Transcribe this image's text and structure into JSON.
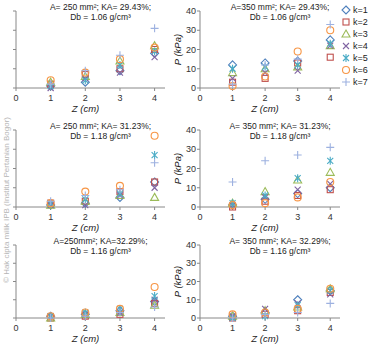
{
  "watermark": "© Hak cipta milik IPB (Institut Pertanian Bogor)",
  "chart_data": [
    {
      "type": "scatter",
      "title": [
        "A= 250 mm²; KA= 29.43%;",
        "Db = 1.06 g/cm³"
      ],
      "x_label": "Z (cm)",
      "x": [
        1,
        2,
        3,
        4
      ],
      "xlim": [
        0,
        4.3
      ],
      "xticks": [
        0,
        1,
        2,
        3,
        4
      ],
      "ylim": [
        0,
        40
      ],
      "yticks": [
        0,
        10,
        20,
        30,
        40
      ],
      "tick_labels": "x",
      "grid": false,
      "series": [
        {
          "name": "k=1",
          "color": "#4f81bd",
          "marker": "diamond",
          "values": [
            1,
            3,
            9,
            18
          ]
        },
        {
          "name": "k=2",
          "color": "#c0504d",
          "marker": "square",
          "values": [
            2,
            7,
            10,
            20
          ]
        },
        {
          "name": "k=3",
          "color": "#9bbb59",
          "marker": "triangle",
          "values": [
            3,
            6,
            14,
            22
          ]
        },
        {
          "name": "k=4",
          "color": "#8064a2",
          "marker": "x",
          "values": [
            0,
            5,
            8,
            16
          ]
        },
        {
          "name": "k=5",
          "color": "#4bacc6",
          "marker": "asterisk",
          "values": [
            1,
            4,
            12,
            19
          ]
        },
        {
          "name": "k=6",
          "color": "#f79646",
          "marker": "circle",
          "values": [
            4,
            8,
            15,
            21
          ]
        },
        {
          "name": "k=7",
          "color": "#9db1e0",
          "marker": "plus",
          "values": [
            2,
            9,
            17,
            31
          ]
        }
      ]
    },
    {
      "type": "scatter",
      "title": [
        "A=350 mm²; KA= 29.43%;",
        "Db = 1.06 g/cm³"
      ],
      "x_label": "Z (cm)",
      "y_label": "P (kPa)",
      "x": [
        1,
        2,
        3,
        4
      ],
      "xlim": [
        0,
        4.3
      ],
      "xticks": [
        0,
        1,
        2,
        3,
        4
      ],
      "ylim": [
        0,
        40
      ],
      "yticks": [
        0,
        10,
        20,
        30,
        40
      ],
      "grid": false,
      "legend": "right",
      "series": [
        {
          "name": "k=1",
          "color": "#4f81bd",
          "marker": "diamond",
          "values": [
            12,
            13,
            14,
            25
          ]
        },
        {
          "name": "k=2",
          "color": "#c0504d",
          "marker": "square",
          "values": [
            3,
            5,
            13,
            16
          ]
        },
        {
          "name": "k=3",
          "color": "#9bbb59",
          "marker": "triangle",
          "values": [
            8,
            10,
            11,
            22
          ]
        },
        {
          "name": "k=4",
          "color": "#8064a2",
          "marker": "x",
          "values": [
            5,
            8,
            9,
            22
          ]
        },
        {
          "name": "k=5",
          "color": "#4bacc6",
          "marker": "asterisk",
          "values": [
            10,
            11,
            12,
            23
          ]
        },
        {
          "name": "k=6",
          "color": "#f79646",
          "marker": "circle",
          "values": [
            1,
            6,
            19,
            30
          ]
        },
        {
          "name": "k=7",
          "color": "#9db1e0",
          "marker": "plus",
          "values": [
            2,
            12,
            15,
            33
          ]
        }
      ]
    },
    {
      "type": "scatter",
      "title": [
        "A= 250 mm²; KA= 31.23%;",
        "Db = 1.18 g/cm³"
      ],
      "x_label": "Z (cm)",
      "x": [
        1,
        2,
        3,
        4
      ],
      "xlim": [
        0,
        4.3
      ],
      "xticks": [
        0,
        1,
        2,
        3,
        4
      ],
      "ylim": [
        0,
        40
      ],
      "yticks": [
        0,
        10,
        20,
        30,
        40
      ],
      "tick_labels": "x",
      "grid": false,
      "series": [
        {
          "name": "k=1",
          "color": "#4f81bd",
          "marker": "diamond",
          "values": [
            1,
            2,
            5,
            13
          ]
        },
        {
          "name": "k=2",
          "color": "#c0504d",
          "marker": "square",
          "values": [
            2,
            3,
            8,
            13
          ]
        },
        {
          "name": "k=3",
          "color": "#9bbb59",
          "marker": "triangle",
          "values": [
            1,
            3,
            6,
            5
          ]
        },
        {
          "name": "k=4",
          "color": "#8064a2",
          "marker": "x",
          "values": [
            1,
            1,
            6,
            10
          ]
        },
        {
          "name": "k=5",
          "color": "#4bacc6",
          "marker": "asterisk",
          "values": [
            2,
            4,
            7,
            27
          ]
        },
        {
          "name": "k=6",
          "color": "#f79646",
          "marker": "circle",
          "values": [
            2,
            8,
            11,
            37
          ]
        },
        {
          "name": "k=7",
          "color": "#9db1e0",
          "marker": "plus",
          "values": [
            3,
            6,
            9,
            23
          ]
        }
      ]
    },
    {
      "type": "scatter",
      "title": [
        "A= 350 mm²; KA= 31.23%;",
        "Db = 1.18 g/cm³"
      ],
      "x_label": "Z (cm)",
      "y_label": "P (kPa)",
      "x": [
        1,
        2,
        3,
        4
      ],
      "xlim": [
        0,
        4.3
      ],
      "xticks": [
        0,
        1,
        2,
        3,
        4
      ],
      "ylim": [
        0,
        40
      ],
      "yticks": [
        0,
        10,
        20,
        30,
        40
      ],
      "grid": false,
      "series": [
        {
          "name": "k=1",
          "color": "#4f81bd",
          "marker": "diamond",
          "values": [
            1,
            4,
            7,
            10
          ]
        },
        {
          "name": "k=2",
          "color": "#c0504d",
          "marker": "square",
          "values": [
            0,
            3,
            6,
            9
          ]
        },
        {
          "name": "k=3",
          "color": "#9bbb59",
          "marker": "triangle",
          "values": [
            2,
            8,
            14,
            18
          ]
        },
        {
          "name": "k=4",
          "color": "#8064a2",
          "marker": "x",
          "values": [
            1,
            5,
            9,
            12
          ]
        },
        {
          "name": "k=5",
          "color": "#4bacc6",
          "marker": "asterisk",
          "values": [
            2,
            6,
            15,
            24
          ]
        },
        {
          "name": "k=6",
          "color": "#f79646",
          "marker": "circle",
          "values": [
            1,
            2,
            5,
            13
          ]
        },
        {
          "name": "k=7",
          "color": "#9db1e0",
          "marker": "plus",
          "values": [
            13,
            24,
            27,
            31
          ]
        }
      ]
    },
    {
      "type": "scatter",
      "title": [
        "A=250mm²; KA=32.29%;",
        "Db = 1.16 g/cm³"
      ],
      "x_label": "Z (cm)",
      "x": [
        1,
        2,
        3,
        4
      ],
      "xlim": [
        0,
        4.3
      ],
      "xticks": [
        0,
        1,
        2,
        3,
        4
      ],
      "ylim": [
        0,
        40
      ],
      "yticks": [
        0,
        10,
        20,
        30,
        40
      ],
      "tick_labels": "x",
      "grid": false,
      "series": [
        {
          "name": "k=1",
          "color": "#4f81bd",
          "marker": "diamond",
          "values": [
            1,
            2,
            4,
            9
          ]
        },
        {
          "name": "k=2",
          "color": "#c0504d",
          "marker": "square",
          "values": [
            0,
            1,
            2,
            8
          ]
        },
        {
          "name": "k=3",
          "color": "#9bbb59",
          "marker": "triangle",
          "values": [
            0,
            2,
            3,
            7
          ]
        },
        {
          "name": "k=4",
          "color": "#8064a2",
          "marker": "x",
          "values": [
            1,
            2,
            3,
            10
          ]
        },
        {
          "name": "k=5",
          "color": "#4bacc6",
          "marker": "asterisk",
          "values": [
            1,
            3,
            5,
            12
          ]
        },
        {
          "name": "k=6",
          "color": "#f79646",
          "marker": "circle",
          "values": [
            1,
            3,
            5,
            17
          ]
        },
        {
          "name": "k=7",
          "color": "#9db1e0",
          "marker": "plus",
          "values": [
            0,
            1,
            3,
            6
          ]
        }
      ]
    },
    {
      "type": "scatter",
      "title": [
        "A= 350 mm²; KA= 32.29%;",
        "Db = 1.16 g/cm³"
      ],
      "x_label": "Z (cm)",
      "y_label": "P (kPa)",
      "x": [
        1,
        2,
        3,
        4
      ],
      "xlim": [
        0,
        4.3
      ],
      "xticks": [
        0,
        1,
        2,
        3,
        4
      ],
      "ylim": [
        0,
        40
      ],
      "yticks": [
        0,
        10,
        20,
        30,
        40
      ],
      "grid": false,
      "series": [
        {
          "name": "k=1",
          "color": "#4f81bd",
          "marker": "diamond",
          "values": [
            1,
            3,
            10,
            15
          ]
        },
        {
          "name": "k=2",
          "color": "#c0504d",
          "marker": "square",
          "values": [
            0,
            2,
            4,
            14
          ]
        },
        {
          "name": "k=3",
          "color": "#9bbb59",
          "marker": "triangle",
          "values": [
            1,
            4,
            6,
            16
          ]
        },
        {
          "name": "k=4",
          "color": "#8064a2",
          "marker": "x",
          "values": [
            1,
            5,
            8,
            13
          ]
        },
        {
          "name": "k=5",
          "color": "#4bacc6",
          "marker": "asterisk",
          "values": [
            0,
            1,
            7,
            15
          ]
        },
        {
          "name": "k=6",
          "color": "#f79646",
          "marker": "circle",
          "values": [
            2,
            3,
            5,
            16
          ]
        },
        {
          "name": "k=7",
          "color": "#9db1e0",
          "marker": "plus",
          "values": [
            0,
            2,
            3,
            8
          ]
        }
      ]
    }
  ]
}
